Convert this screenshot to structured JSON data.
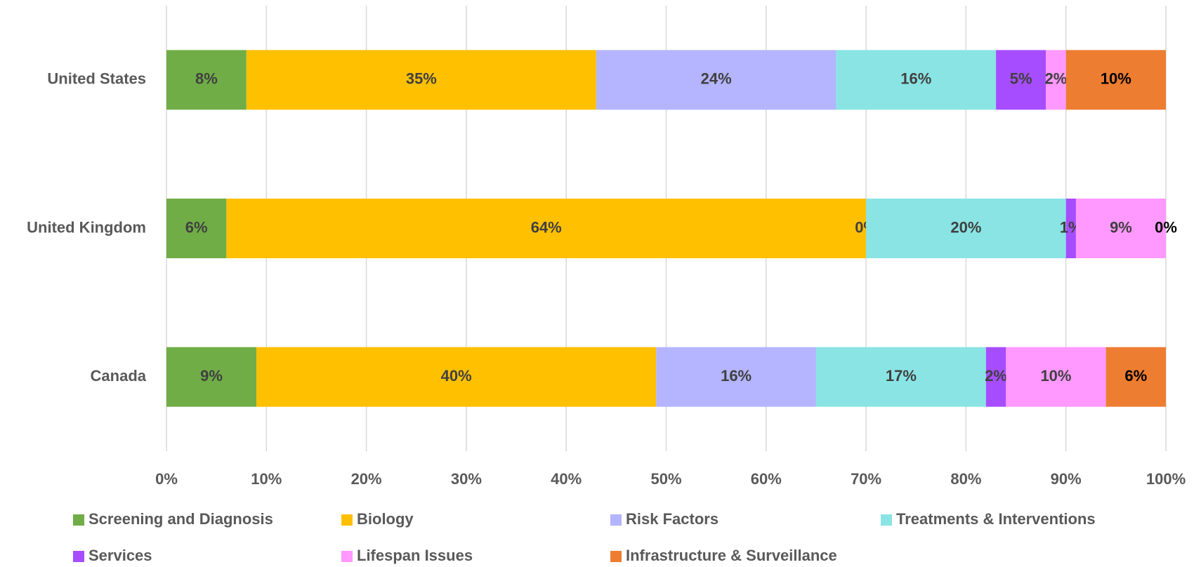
{
  "chart_data": {
    "type": "stacked-bar-horizontal",
    "categories": [
      "United States",
      "United Kingdom",
      "Canada"
    ],
    "series": [
      {
        "name": "Screening and Diagnosis",
        "color": "#70ad47",
        "label_color": "#404040",
        "values": [
          8,
          6,
          9
        ],
        "value_labels": [
          "8%",
          "6%",
          "9%"
        ]
      },
      {
        "name": "Biology",
        "color": "#ffc000",
        "label_color": "#404040",
        "values": [
          35,
          64,
          40
        ],
        "value_labels": [
          "35%",
          "64%",
          "40%"
        ]
      },
      {
        "name": "Risk Factors",
        "color": "#b4b4ff",
        "label_color": "#404040",
        "values": [
          24,
          0,
          16
        ],
        "value_labels": [
          "24%",
          "0%",
          "16%"
        ]
      },
      {
        "name": "Treatments & Interventions",
        "color": "#8ae4e4",
        "label_color": "#404040",
        "values": [
          16,
          20,
          17
        ],
        "value_labels": [
          "16%",
          "20%",
          "17%"
        ]
      },
      {
        "name": "Services",
        "color": "#a64dff",
        "label_color": "#404040",
        "values": [
          5,
          1,
          2
        ],
        "value_labels": [
          "5%",
          "1%",
          "2%"
        ]
      },
      {
        "name": "Lifespan Issues",
        "color": "#ff99ff",
        "label_color": "#404040",
        "values": [
          2,
          9,
          10
        ],
        "value_labels": [
          "2%",
          "9%",
          "10%"
        ]
      },
      {
        "name": "Infrastructure & Surveillance",
        "color": "#ed7d31",
        "label_color": "#000000",
        "values": [
          10,
          0,
          6
        ],
        "value_labels": [
          "10%",
          "0%",
          "6%"
        ]
      }
    ],
    "xlim": [
      0,
      100
    ],
    "xticks": [
      {
        "value": 0,
        "label": "0%"
      },
      {
        "value": 10,
        "label": "10%"
      },
      {
        "value": 20,
        "label": "20%"
      },
      {
        "value": 30,
        "label": "30%"
      },
      {
        "value": 40,
        "label": "40%"
      },
      {
        "value": 50,
        "label": "50%"
      },
      {
        "value": 60,
        "label": "60%"
      },
      {
        "value": 70,
        "label": "70%"
      },
      {
        "value": 80,
        "label": "80%"
      },
      {
        "value": 90,
        "label": "90%"
      },
      {
        "value": 100,
        "label": "100%"
      }
    ],
    "grid": true,
    "legend": "bottom"
  }
}
